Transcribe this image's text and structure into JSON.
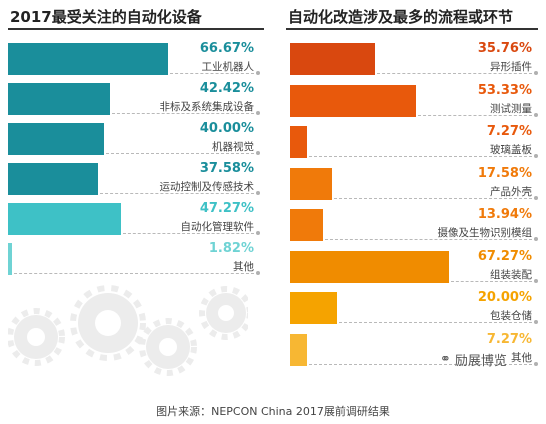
{
  "source_note": "图片来源：NEPCON China 2017展前调研结果",
  "watermark": "励展博览",
  "chart_data": [
    {
      "type": "bar",
      "orientation": "horizontal",
      "title": "2017最受关注的自动化设备",
      "categories": [
        "工业机器人",
        "非标及系统集成设备",
        "机器视觉",
        "运动控制及传感技术",
        "自动化管理软件",
        "其他"
      ],
      "values": [
        66.67,
        42.42,
        40.0,
        37.58,
        47.27,
        1.82
      ],
      "value_labels": [
        "66.67%",
        "42.42%",
        "40.00%",
        "37.58%",
        "47.27%",
        "1.82%"
      ],
      "colors": [
        "#1a8e9b",
        "#1a8e9b",
        "#1a8e9b",
        "#1a8e9b",
        "#3ec1c6",
        "#6fd3d4"
      ],
      "xlim": [
        0,
        100
      ]
    },
    {
      "type": "bar",
      "orientation": "horizontal",
      "title": "自动化改造涉及最多的流程或环节",
      "categories": [
        "异形插件",
        "测试测量",
        "玻璃盖板",
        "产品外壳",
        "摄像及生物识别模组",
        "组装装配",
        "包装仓储",
        "其他"
      ],
      "values": [
        35.76,
        53.33,
        7.27,
        17.58,
        13.94,
        67.27,
        20.0,
        7.27
      ],
      "value_labels": [
        "35.76%",
        "53.33%",
        "7.27%",
        "17.58%",
        "13.94%",
        "67.27%",
        "20.00%",
        "7.27%"
      ],
      "colors": [
        "#d9480f",
        "#e8590c",
        "#e8590c",
        "#f07a0a",
        "#f07a0a",
        "#f08c00",
        "#f5a300",
        "#f7b733"
      ],
      "xlim": [
        0,
        100
      ]
    }
  ]
}
